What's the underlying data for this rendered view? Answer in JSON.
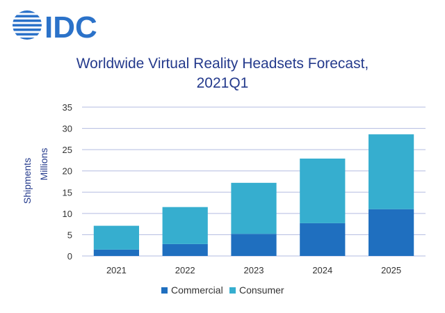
{
  "brand": {
    "logo_text": "IDC",
    "logo_color": "#2b72c9"
  },
  "chart_data": {
    "type": "bar",
    "stacked": true,
    "title_lines": [
      "Worldwide Virtual Reality Headsets Forecast,",
      "2021Q1"
    ],
    "xlabel": "",
    "ylabel_lines": [
      "Shipments",
      "Millions"
    ],
    "categories": [
      "2021",
      "2022",
      "2023",
      "2024",
      "2025"
    ],
    "series": [
      {
        "name": "Commercial",
        "color": "#1f6fbf",
        "values": [
          1.5,
          2.8,
          5.2,
          7.7,
          11.0
        ]
      },
      {
        "name": "Consumer",
        "color": "#36aecf",
        "values": [
          5.6,
          8.7,
          12.0,
          15.2,
          17.6
        ]
      }
    ],
    "ylim": [
      0,
      35
    ],
    "yticks": [
      0,
      5,
      10,
      15,
      20,
      25,
      30,
      35
    ],
    "grid": true,
    "grid_color": "#b3bbe0",
    "legend_position": "bottom"
  }
}
